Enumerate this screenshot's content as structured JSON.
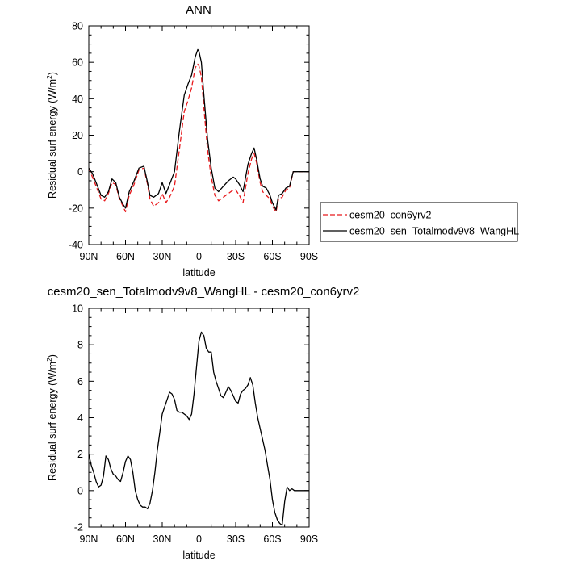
{
  "chart_data": [
    {
      "type": "line",
      "title": "ANN",
      "xlabel": "latitude",
      "ylabel": "Residual surf energy (W/m²)",
      "xlim": [
        90,
        -90
      ],
      "ylim": [
        -40,
        80
      ],
      "xticks": [
        90,
        60,
        30,
        0,
        -30,
        -60,
        -90
      ],
      "xtick_labels": [
        "90N",
        "60N",
        "30N",
        "0",
        "30S",
        "60S",
        "90S"
      ],
      "yticks": [
        -40,
        -20,
        0,
        20,
        40,
        60,
        80
      ],
      "ytick_labels": [
        "-40",
        "-20",
        "0",
        "20",
        "40",
        "60",
        "80"
      ],
      "grid": false,
      "legend_position": "right",
      "series": [
        {
          "name": "cesm20_con6yrv2",
          "color": "#e8191c",
          "dash": "dashed",
          "x": [
            90,
            87,
            84,
            80,
            77,
            74,
            71,
            68,
            65,
            62,
            60,
            57,
            53,
            49,
            45,
            42,
            40,
            37,
            33,
            30,
            27,
            24,
            20,
            16,
            12,
            9,
            6,
            3,
            1,
            0,
            -2,
            -4,
            -7,
            -10,
            -13,
            -16,
            -20,
            -24,
            -28,
            -30,
            -33,
            -36,
            -40,
            -43,
            -45,
            -47,
            -50,
            -52,
            -55,
            -58,
            -60,
            -63,
            -65,
            -68,
            -71,
            -74,
            -77,
            -80,
            -84,
            -87,
            -90
          ],
          "y": [
            2,
            -3,
            -8,
            -15,
            -16,
            -12,
            -6,
            -7,
            -15,
            -19,
            -22,
            -13,
            -7,
            1,
            2,
            -7,
            -15,
            -19,
            -17,
            -12,
            -17,
            -14,
            -8,
            12,
            33,
            39,
            46,
            57,
            59,
            58,
            52,
            35,
            12,
            -3,
            -13,
            -16,
            -14,
            -12,
            -10,
            -10,
            -13,
            -17,
            -1,
            7,
            10,
            5,
            -6,
            -11,
            -13,
            -15,
            -19,
            -22,
            -15,
            -14,
            -10,
            -9,
            0,
            0,
            0,
            0,
            0
          ]
        },
        {
          "name": "cesm20_sen_Totalmodv9v8_WangHL",
          "color": "#000000",
          "dash": "solid",
          "x": [
            90,
            87,
            84,
            80,
            77,
            74,
            71,
            68,
            65,
            62,
            60,
            57,
            53,
            49,
            45,
            42,
            40,
            37,
            33,
            30,
            27,
            24,
            20,
            16,
            12,
            9,
            6,
            3,
            1,
            0,
            -2,
            -4,
            -7,
            -10,
            -13,
            -16,
            -20,
            -24,
            -28,
            -30,
            -33,
            -36,
            -40,
            -43,
            -45,
            -47,
            -50,
            -52,
            -55,
            -58,
            -60,
            -63,
            -65,
            -68,
            -71,
            -74,
            -77,
            -80,
            -84,
            -87,
            -90
          ],
          "y": [
            2,
            -1,
            -6,
            -13,
            -14,
            -11,
            -4,
            -6,
            -14,
            -18,
            -20,
            -11,
            -5,
            2,
            3,
            -6,
            -13,
            -14,
            -12,
            -6,
            -12,
            -7,
            0,
            22,
            42,
            48,
            53,
            63,
            67,
            66,
            60,
            42,
            18,
            2,
            -9,
            -11,
            -8,
            -5,
            -3,
            -4,
            -7,
            -11,
            4,
            10,
            13,
            7,
            -4,
            -8,
            -9,
            -13,
            -17,
            -21,
            -13,
            -12,
            -9,
            -8,
            0,
            0,
            0,
            0,
            0
          ]
        }
      ]
    },
    {
      "type": "line",
      "title": "cesm20_sen_Totalmodv9v8_WangHL - cesm20_con6yrv2",
      "xlabel": "latitude",
      "ylabel": "Residual surf energy (W/m²)",
      "xlim": [
        90,
        -90
      ],
      "ylim": [
        -2,
        10
      ],
      "xticks": [
        90,
        60,
        30,
        0,
        -30,
        -60,
        -90
      ],
      "xtick_labels": [
        "90N",
        "60N",
        "30N",
        "0",
        "30S",
        "60S",
        "90S"
      ],
      "yticks": [
        -2,
        0,
        2,
        4,
        6,
        8,
        10
      ],
      "ytick_labels": [
        "-2",
        "0",
        "2",
        "4",
        "6",
        "8",
        "10"
      ],
      "grid": false,
      "series": [
        {
          "color": "#000000",
          "dash": "solid",
          "x": [
            90,
            88,
            86,
            84,
            82,
            80,
            78,
            76,
            74,
            72,
            70,
            68,
            66,
            64,
            62,
            60,
            58,
            56,
            54,
            52,
            50,
            48,
            46,
            44,
            42,
            40,
            38,
            36,
            34,
            32,
            30,
            28,
            26,
            24,
            22,
            20,
            18,
            16,
            14,
            12,
            10,
            8,
            6,
            4,
            2,
            0,
            -2,
            -4,
            -6,
            -8,
            -10,
            -12,
            -14,
            -16,
            -18,
            -20,
            -22,
            -24,
            -26,
            -28,
            -30,
            -32,
            -34,
            -36,
            -38,
            -40,
            -42,
            -44,
            -46,
            -48,
            -50,
            -52,
            -54,
            -56,
            -58,
            -60,
            -62,
            -64,
            -66,
            -68,
            -70,
            -72,
            -74,
            -76,
            -78,
            -80,
            -82,
            -84,
            -86,
            -88,
            -90
          ],
          "y": [
            2.0,
            1.4,
            1.0,
            0.5,
            0.2,
            0.3,
            0.8,
            1.9,
            1.7,
            1.2,
            0.9,
            0.8,
            0.6,
            0.5,
            1.0,
            1.6,
            1.9,
            1.7,
            1.0,
            0.0,
            -0.5,
            -0.8,
            -0.9,
            -0.9,
            -1.0,
            -0.7,
            0.0,
            1.0,
            2.2,
            3.2,
            4.2,
            4.6,
            5.0,
            5.4,
            5.3,
            5.0,
            4.4,
            4.3,
            4.3,
            4.2,
            4.1,
            3.9,
            4.2,
            5.3,
            6.8,
            8.2,
            8.7,
            8.5,
            7.8,
            7.6,
            7.6,
            6.5,
            6.0,
            5.6,
            5.2,
            5.1,
            5.4,
            5.7,
            5.5,
            5.2,
            4.9,
            4.8,
            5.3,
            5.5,
            5.6,
            5.8,
            6.2,
            5.8,
            4.8,
            4.0,
            3.4,
            2.8,
            2.2,
            1.4,
            0.6,
            -0.5,
            -1.2,
            -1.6,
            -1.8,
            -1.9,
            -0.6,
            0.2,
            0.0,
            0.1,
            0.0,
            0.0,
            0.0,
            0.0,
            0.0,
            0.0,
            0.0
          ]
        }
      ]
    }
  ]
}
